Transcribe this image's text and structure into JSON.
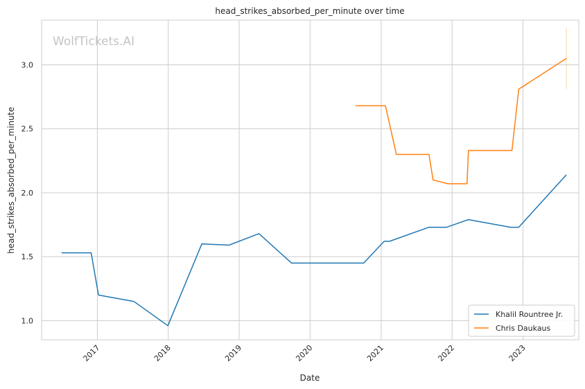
{
  "chart_data": {
    "type": "line",
    "title": "head_strikes_absorbed_per_minute over time",
    "xlabel": "Date",
    "ylabel": "head_strikes_absorbed_per_minute",
    "watermark": "WolfTickets.AI",
    "x_ticks": [
      "2017",
      "2018",
      "2019",
      "2020",
      "2021",
      "2022",
      "2023"
    ],
    "y_ticks": [
      "1.0",
      "1.5",
      "2.0",
      "2.5",
      "3.0"
    ],
    "xlim": [
      "2016-03-20",
      "2023-10-15"
    ],
    "ylim": [
      0.85,
      3.35
    ],
    "grid": true,
    "legend_position": "bottom-right",
    "series": [
      {
        "name": "Khalil Rountree Jr.",
        "color": "#1f77b4",
        "points": [
          [
            "2016-07-01",
            1.53
          ],
          [
            "2016-11-30",
            1.53
          ],
          [
            "2017-01-07",
            1.2
          ],
          [
            "2017-07-08",
            1.15
          ],
          [
            "2017-12-30",
            0.96
          ],
          [
            "2018-06-23",
            1.6
          ],
          [
            "2018-11-10",
            1.59
          ],
          [
            "2019-04-13",
            1.68
          ],
          [
            "2019-09-28",
            1.45
          ],
          [
            "2020-10-03",
            1.45
          ],
          [
            "2021-01-16",
            1.62
          ],
          [
            "2021-02-13",
            1.62
          ],
          [
            "2021-09-04",
            1.73
          ],
          [
            "2021-12-04",
            1.73
          ],
          [
            "2022-03-26",
            1.79
          ],
          [
            "2022-10-29",
            1.73
          ],
          [
            "2022-12-10",
            1.73
          ],
          [
            "2023-08-12",
            2.14
          ]
        ]
      },
      {
        "name": "Chris Daukaus",
        "color": "#ff7f0e",
        "points": [
          [
            "2020-08-22",
            2.68
          ],
          [
            "2021-01-23",
            2.68
          ],
          [
            "2021-03-20",
            2.3
          ],
          [
            "2021-09-04",
            2.3
          ],
          [
            "2021-09-25",
            2.1
          ],
          [
            "2021-12-11",
            2.07
          ],
          [
            "2022-03-19",
            2.07
          ],
          [
            "2022-03-26",
            2.33
          ],
          [
            "2022-11-05",
            2.33
          ],
          [
            "2022-12-10",
            2.81
          ],
          [
            "2023-08-12",
            3.05
          ]
        ],
        "errorbar": {
          "x": "2023-08-12",
          "low": 2.81,
          "high": 3.29
        }
      }
    ]
  }
}
